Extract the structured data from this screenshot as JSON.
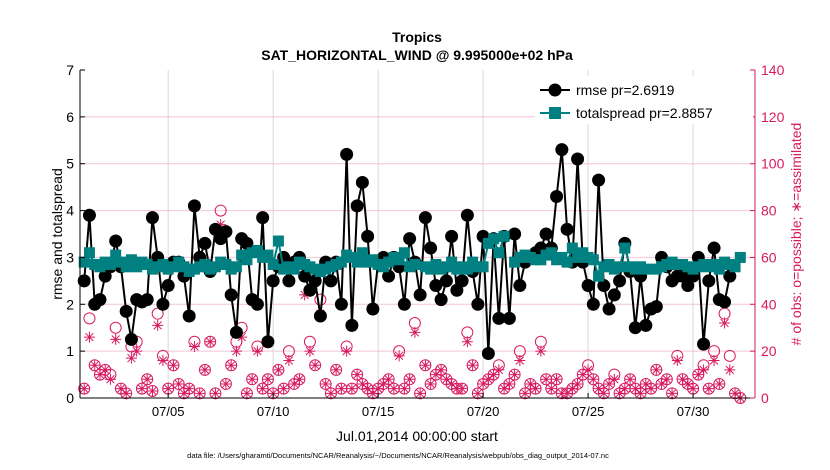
{
  "chart_data": {
    "type": "line",
    "title": "Tropics",
    "subtitle": "SAT_HORIZONTAL_WIND @ 9.995000e+02 hPa",
    "xlabel": "Jul.01,2014 00:00:00 start",
    "ylabel": "rmse and totalspread",
    "ylabel_right": "# of obs: o=possible; ∗=assimilated",
    "footnote": "data file: /Users/gharamti/Documents/NCAR/Reanalysis/~/Documents/NCAR/Reanalysis/webpub/obs_diag_output_2014-07.nc",
    "x_units": "day of July 2014",
    "x_start": 1,
    "x_step": 0.25,
    "xlim": [
      0.8,
      32.95
    ],
    "ylim": [
      0,
      7
    ],
    "ylim_right": [
      0,
      140
    ],
    "grid": true,
    "legend_position": "top-right",
    "x_ticks": [
      {
        "value": 5,
        "label": "07/05"
      },
      {
        "value": 10,
        "label": "07/10"
      },
      {
        "value": 15,
        "label": "07/15"
      },
      {
        "value": 20,
        "label": "07/20"
      },
      {
        "value": 25,
        "label": "07/25"
      },
      {
        "value": 30,
        "label": "07/30"
      }
    ],
    "y_ticks": [
      "0",
      "1",
      "2",
      "3",
      "4",
      "5",
      "6",
      "7"
    ],
    "y_ticks_right": [
      "0",
      "20",
      "40",
      "60",
      "80",
      "100",
      "120",
      "140"
    ],
    "colors": {
      "rmse": "#000000",
      "spread": "#008080",
      "obs": "#d81b60",
      "grid_v": "#d9d9d9",
      "grid_h": "#f2c4d6"
    },
    "series": [
      {
        "name": "rmse pr=2.6919",
        "axis": "left",
        "marker": "circle",
        "values": [
          2.5,
          3.9,
          2.0,
          2.1,
          2.6,
          2.8,
          3.35,
          2.8,
          1.85,
          1.25,
          2.1,
          2.05,
          2.1,
          3.85,
          3.0,
          2.0,
          2.4,
          2.9,
          2.9,
          2.6,
          1.75,
          4.1,
          3.0,
          3.3,
          2.7,
          3.6,
          3.4,
          3.55,
          2.2,
          1.4,
          3.4,
          3.3,
          2.1,
          2.0,
          3.85,
          1.2,
          2.5,
          2.8,
          3.0,
          2.5,
          2.9,
          3.0,
          2.6,
          2.3,
          2.5,
          1.75,
          2.9,
          2.5,
          2.9,
          2.0,
          5.2,
          1.55,
          4.1,
          4.6,
          3.45,
          1.9,
          2.9,
          3.0,
          2.6,
          3.0,
          2.8,
          2.0,
          3.4,
          2.9,
          2.2,
          3.85,
          3.2,
          2.4,
          2.1,
          2.5,
          3.45,
          2.3,
          2.5,
          3.9,
          2.7,
          2.0,
          3.45,
          0.95,
          3.4,
          1.7,
          3.45,
          1.7,
          3.5,
          2.4,
          2.9,
          3.0,
          3.1,
          3.2,
          3.5,
          3.2,
          4.3,
          5.3,
          3.6,
          2.9,
          5.1,
          2.9,
          2.4,
          2.0,
          4.65,
          2.4,
          1.9,
          2.2,
          2.5,
          3.3,
          2.7,
          1.5,
          2.6,
          1.55,
          1.9,
          1.95,
          3.0,
          2.8,
          2.5,
          2.6,
          2.6,
          2.4,
          2.6,
          3.0,
          1.15,
          2.5,
          3.2,
          2.1,
          2.05,
          2.6
        ]
      },
      {
        "name": "totalspread pr=2.8857",
        "axis": "left",
        "marker": "square",
        "values": [
          2.9,
          3.1,
          2.85,
          2.8,
          2.9,
          2.85,
          3.05,
          2.9,
          2.8,
          2.95,
          2.8,
          2.9,
          2.85,
          2.75,
          2.8,
          2.85,
          2.75,
          2.8,
          2.9,
          2.8,
          2.7,
          2.75,
          2.8,
          2.85,
          2.75,
          2.8,
          2.9,
          2.85,
          2.75,
          2.8,
          3.05,
          2.95,
          3.1,
          3.15,
          3.0,
          3.05,
          2.85,
          3.35,
          2.75,
          2.8,
          2.75,
          2.9,
          2.85,
          2.8,
          2.75,
          2.7,
          2.75,
          2.8,
          2.85,
          2.9,
          3.05,
          3.0,
          2.9,
          3.1,
          2.9,
          2.95,
          2.85,
          2.8,
          2.9,
          3.0,
          2.95,
          3.1,
          2.8,
          2.85,
          null,
          2.8,
          2.75,
          2.85,
          2.75,
          2.8,
          2.9,
          2.75,
          2.8,
          2.75,
          2.9,
          2.8,
          2.8,
          3.3,
          3.4,
          3.1,
          3.45,
          null,
          2.9,
          3.0,
          3.05,
          3.0,
          2.95,
          2.95,
          3.05,
          3.1,
          2.95,
          3.0,
          2.9,
          3.2,
          3.0,
          3.1,
          3.0,
          2.95,
          2.6,
          2.8,
          2.85,
          2.75,
          2.8,
          3.2,
          2.8,
          2.75,
          2.8,
          2.75,
          null,
          2.75,
          2.8,
          2.85,
          2.9,
          2.85,
          2.85,
          2.8,
          2.75,
          2.8,
          2.85,
          2.8,
          2.85,
          2.75,
          2.9,
          2.85,
          2.8,
          3.0
        ]
      },
      {
        "name": "possible obs",
        "axis": "right",
        "marker": "o",
        "values": [
          4,
          34,
          14,
          10,
          12,
          10,
          30,
          4,
          2,
          22,
          24,
          4,
          8,
          3,
          36,
          18,
          4,
          14,
          6,
          2,
          4,
          24,
          2,
          12,
          24,
          2,
          80,
          6,
          14,
          24,
          30,
          2,
          8,
          22,
          4,
          8,
          2,
          12,
          4,
          20,
          6,
          8,
          52,
          24,
          14,
          42,
          6,
          2,
          12,
          4,
          22,
          4,
          10,
          6,
          4,
          2,
          4,
          6,
          8,
          4,
          20,
          4,
          8,
          32,
          2,
          14,
          6,
          10,
          12,
          8,
          6,
          4,
          4,
          28,
          14,
          2,
          6,
          8,
          10,
          14,
          4,
          6,
          10,
          20,
          2,
          6,
          4,
          24,
          8,
          4,
          8,
          2,
          2,
          4,
          6,
          10,
          14,
          8,
          4,
          2,
          6,
          10,
          2,
          4,
          8,
          4,
          2,
          6,
          4,
          12,
          6,
          8,
          2,
          18,
          8,
          6,
          4,
          10,
          14,
          4,
          20,
          6,
          36,
          18,
          2,
          0
        ]
      },
      {
        "name": "assimilated obs",
        "axis": "right",
        "marker": "asterisk",
        "values": [
          4,
          26,
          14,
          10,
          12,
          8,
          25,
          4,
          2,
          17,
          20,
          4,
          8,
          3,
          31,
          16,
          4,
          14,
          6,
          2,
          4,
          22,
          2,
          12,
          24,
          2,
          74,
          6,
          14,
          20,
          26,
          2,
          8,
          20,
          4,
          8,
          2,
          12,
          4,
          16,
          6,
          8,
          44,
          20,
          14,
          36,
          6,
          2,
          12,
          4,
          20,
          4,
          10,
          6,
          4,
          2,
          4,
          6,
          8,
          4,
          18,
          4,
          8,
          28,
          2,
          14,
          6,
          10,
          12,
          8,
          6,
          4,
          4,
          24,
          14,
          2,
          6,
          8,
          10,
          12,
          4,
          6,
          10,
          16,
          2,
          6,
          4,
          20,
          8,
          4,
          8,
          2,
          2,
          4,
          6,
          10,
          12,
          8,
          4,
          2,
          6,
          8,
          2,
          4,
          8,
          4,
          2,
          6,
          4,
          12,
          6,
          8,
          2,
          16,
          8,
          6,
          4,
          10,
          12,
          4,
          16,
          6,
          32,
          12,
          2,
          0
        ]
      }
    ]
  }
}
